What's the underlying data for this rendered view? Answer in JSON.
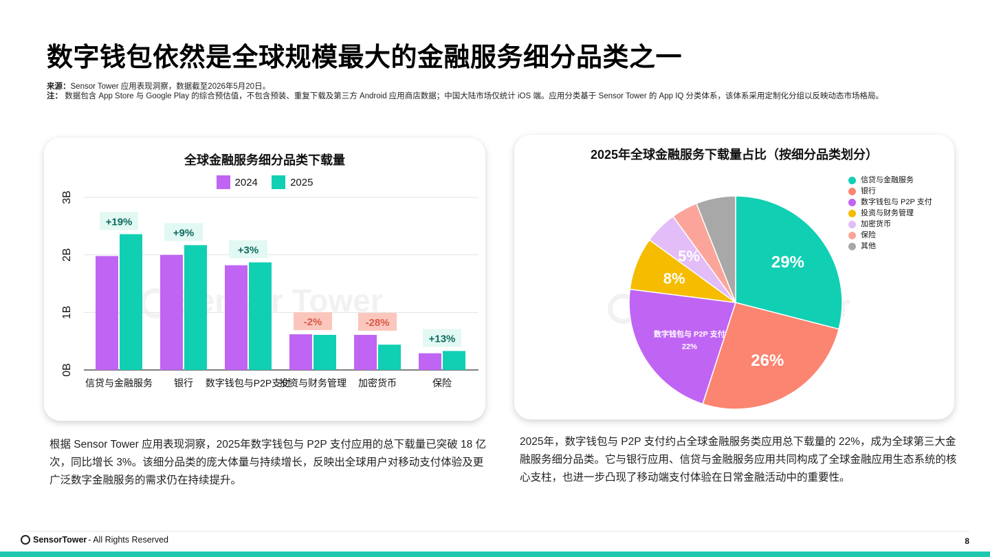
{
  "title": "数字钱包依然是全球规模最大的金融服务细分品类之一",
  "notes": {
    "source_label": "来源：",
    "source_text": "Sensor Tower 应用表现洞察，数据截至2026年5月20日。",
    "note_label": "注：",
    "note_text": "数据包含 App Store 与 Google Play 的综合预估值，不包含预装、重复下载及第三方 Android 应用商店数据；中国大陆市场仅统计 iOS 端。应用分类基于 Sensor Tower 的 App IQ 分类体系，该体系采用定制化分组以反映动态市场格局。"
  },
  "watermark": "Sensor Tower",
  "colors": {
    "series_2024": "#c065f3",
    "series_2025": "#11cfb3",
    "growth_pos": "#e2f8f3",
    "growth_neg": "#fbc7bc",
    "brand": "#1ec9b0"
  },
  "chart_data": [
    {
      "type": "bar",
      "title": "全球金融服务细分品类下载量",
      "categories": [
        "信贷与金融服务",
        "银行",
        "数字钱包与P2P支付",
        "投资与财务管理",
        "加密货币",
        "保险"
      ],
      "series": [
        {
          "name": "2024",
          "values": [
            1.98,
            2.0,
            1.82,
            0.62,
            0.61,
            0.29
          ],
          "color": "#c065f3"
        },
        {
          "name": "2025",
          "values": [
            2.36,
            2.17,
            1.87,
            0.61,
            0.44,
            0.33
          ],
          "color": "#11cfb3"
        }
      ],
      "growth_labels": [
        "+19%",
        "+9%",
        "+3%",
        "-2%",
        "-28%",
        "+13%"
      ],
      "yticks": [
        "0B",
        "1B",
        "2B",
        "3B"
      ],
      "ylim": [
        0,
        3
      ],
      "unit": "B",
      "grid": true,
      "legend": "top-center"
    },
    {
      "type": "pie",
      "title": "2025年全球金融服务下载量占比（按细分品类划分）",
      "labels": [
        "信贷与金融服务",
        "银行",
        "数字钱包与 P2P 支付",
        "投资与财务管理",
        "加密货币",
        "保险",
        "其他"
      ],
      "values": [
        29,
        26,
        22,
        8,
        5,
        4,
        6
      ],
      "colors": [
        "#11cfb3",
        "#fb8570",
        "#c065f3",
        "#f5bc00",
        "#e2bdf8",
        "#fba59a",
        "#a8a8a8"
      ],
      "slice_labels": [
        "29%",
        "26%",
        "22%",
        "8%",
        "5%",
        "",
        ""
      ],
      "inner_name_label": "数字钱包与 P2P 支付",
      "legend": "right"
    }
  ],
  "paragraphs": {
    "left": "根据 Sensor Tower 应用表现洞察，2025年数字钱包与 P2P 支付应用的总下载量已突破 18 亿次，同比增长 3%。该细分品类的庞大体量与持续增长，反映出全球用户对移动支付体验及更广泛数字金融服务的需求仍在持续提升。",
    "right": "2025年，数字钱包与 P2P 支付约占全球金融服务类应用总下载量的 22%，成为全球第三大金融服务细分品类。它与银行应用、信贷与金融服务应用共同构成了全球金融应用生态系统的核心支柱，也进一步凸现了移动端支付体验在日常金融活动中的重要性。"
  },
  "footer": {
    "brand": "SensorTower",
    "rights": "- All Rights Reserved",
    "page": "8"
  }
}
